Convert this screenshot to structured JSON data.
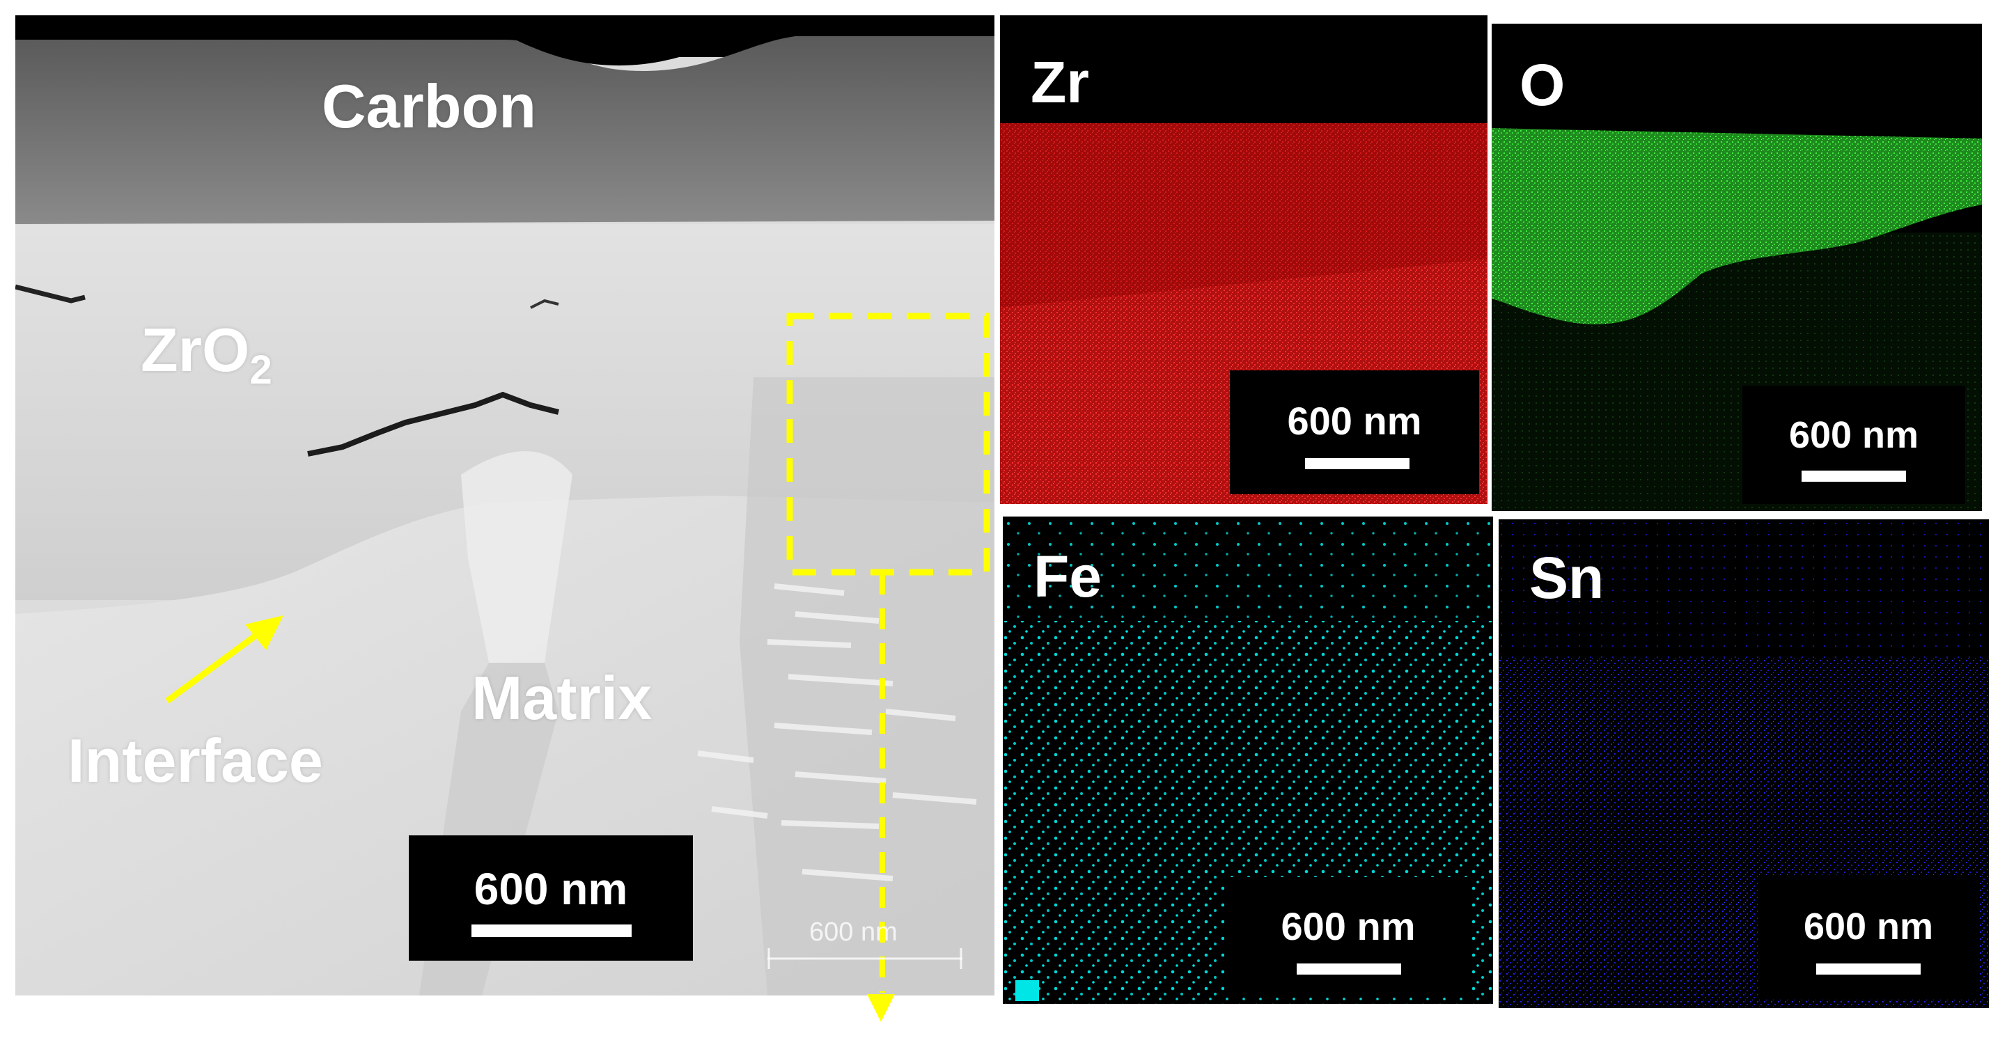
{
  "stem": {
    "labels": {
      "carbon": "Carbon",
      "zro2_base": "ZrO",
      "zro2_sub": "2",
      "matrix": "Matrix",
      "interface": "Interface"
    },
    "scale_label": "600 nm",
    "faint_scale_label": "600 nm",
    "colors": {
      "annotation": "#ffff00",
      "label": "#ffffff"
    }
  },
  "maps": [
    {
      "element": "Zr",
      "scale_label": "600 nm",
      "color": "#ff2020"
    },
    {
      "element": "O",
      "scale_label": "600 nm",
      "color": "#33dd33"
    },
    {
      "element": "Fe",
      "scale_label": "600 nm",
      "color": "#00e5e5"
    },
    {
      "element": "Sn",
      "scale_label": "600 nm",
      "color": "#2233ff"
    }
  ]
}
